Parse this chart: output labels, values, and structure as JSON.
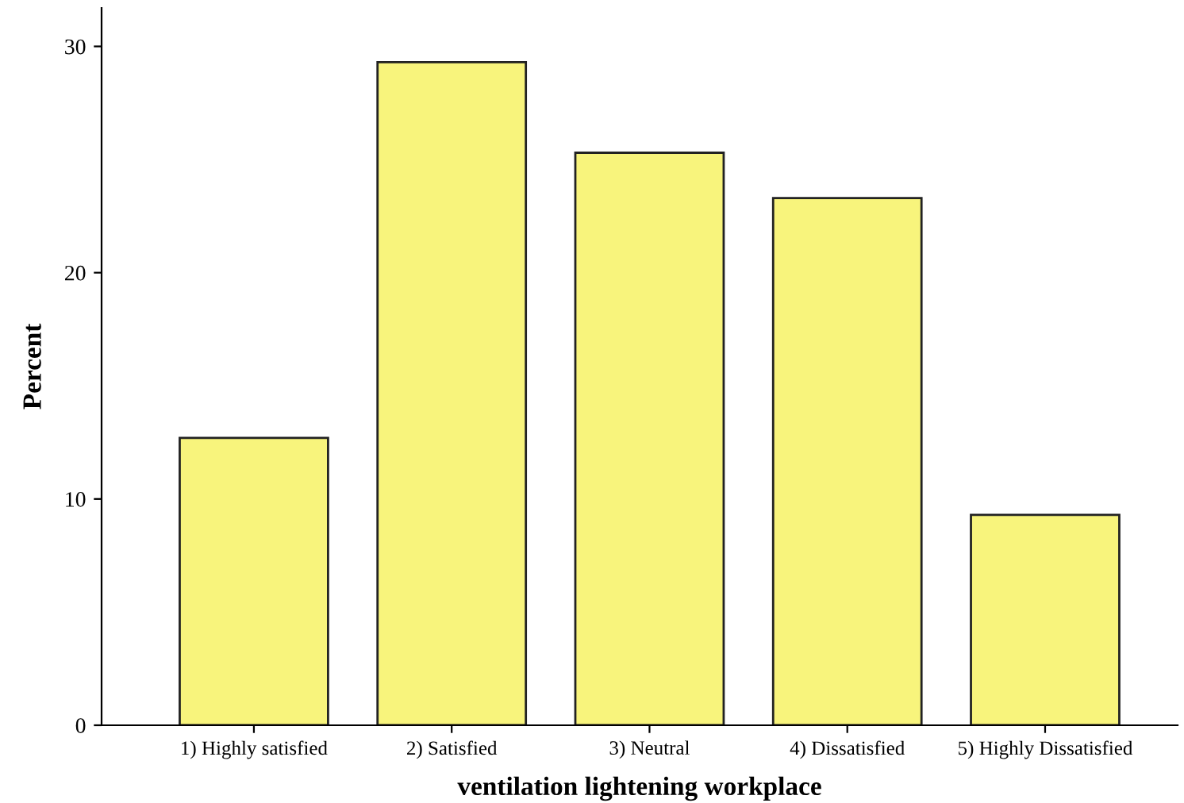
{
  "chart_data": {
    "type": "bar",
    "xlabel": "ventilation lightening workplace",
    "ylabel": "Percent",
    "categories": [
      "1) Highly satisfied",
      "2) Satisfied",
      "3) Neutral",
      "4) Dissatisfied",
      "5) Highly Dissatisfied"
    ],
    "values": [
      12.7,
      29.3,
      25.3,
      23.3,
      9.3
    ],
    "color": "#f8f47c",
    "ylim": [
      0,
      31.7
    ],
    "yticks": [
      0,
      10,
      20,
      30
    ],
    "grid": false,
    "legend": false
  }
}
